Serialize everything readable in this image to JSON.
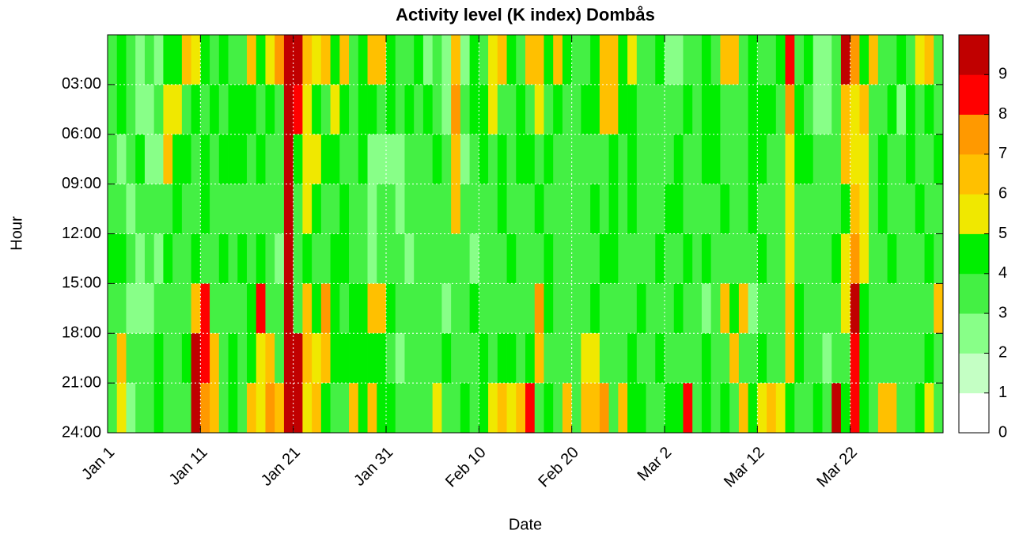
{
  "chart_data": {
    "type": "heatmap",
    "title": "Activity level (K index) Dombås",
    "xlabel": "Date",
    "ylabel": "Hour",
    "x": [
      0,
      1,
      2,
      3,
      4,
      5,
      6,
      7,
      8,
      9,
      10,
      11,
      12,
      13,
      14,
      15,
      16,
      17,
      18,
      19,
      20,
      21,
      22,
      23,
      24,
      25,
      26,
      27,
      28,
      29,
      30,
      31,
      32,
      33,
      34,
      35,
      36,
      37,
      38,
      39,
      40,
      41,
      42,
      43,
      44,
      45,
      46,
      47,
      48,
      49,
      50,
      51,
      52,
      53,
      54,
      55,
      56,
      57,
      58,
      59,
      60,
      61,
      62,
      63,
      64,
      65,
      66,
      67,
      68,
      69,
      70,
      71,
      72,
      73,
      74,
      75,
      76,
      77,
      78,
      79,
      80,
      81,
      82,
      83,
      84,
      85,
      86,
      87,
      88,
      89
    ],
    "ybins": [
      0,
      3,
      6,
      9,
      12,
      15,
      18,
      21,
      24
    ],
    "xlim": [
      0,
      90
    ],
    "xticks": [
      {
        "value": 0,
        "label": "Jan 1"
      },
      {
        "value": 10,
        "label": "Jan 11"
      },
      {
        "value": 20,
        "label": "Jan 21"
      },
      {
        "value": 30,
        "label": "Jan 31"
      },
      {
        "value": 40,
        "label": "Feb 10"
      },
      {
        "value": 50,
        "label": "Feb 20"
      },
      {
        "value": 60,
        "label": "Mar 2"
      },
      {
        "value": 70,
        "label": "Mar 12"
      },
      {
        "value": 80,
        "label": "Mar 22"
      }
    ],
    "ylim": [
      0,
      24
    ],
    "yticks": [
      {
        "value": 3,
        "label": "03:00"
      },
      {
        "value": 6,
        "label": "06:00"
      },
      {
        "value": 9,
        "label": "09:00"
      },
      {
        "value": 12,
        "label": "12:00"
      },
      {
        "value": 15,
        "label": "15:00"
      },
      {
        "value": 18,
        "label": "18:00"
      },
      {
        "value": 21,
        "label": "21:00"
      },
      {
        "value": 24,
        "label": "24:00"
      }
    ],
    "zlim": [
      0,
      10
    ],
    "zticks": [
      0,
      1,
      2,
      3,
      4,
      5,
      6,
      7,
      8,
      9
    ],
    "colors": [
      "#ffffff",
      "#c4ffc4",
      "#88ff88",
      "#44f044",
      "#00ee00",
      "#f0e800",
      "#ffc000",
      "#ff9900",
      "#ff0000",
      "#c00000"
    ],
    "grid": true,
    "values": [
      [
        3,
        4,
        3,
        2,
        3,
        2,
        4,
        4,
        6,
        5,
        4,
        3,
        4,
        3,
        3,
        6,
        4,
        5,
        7,
        9,
        9,
        6,
        5,
        6,
        4,
        6,
        3,
        4,
        6,
        6,
        4,
        3,
        3,
        4,
        2,
        3,
        2,
        6,
        2,
        4,
        3,
        5,
        6,
        4,
        3,
        6,
        6,
        4,
        6,
        4,
        3,
        3,
        4,
        6,
        6,
        4,
        5,
        3,
        3,
        4,
        2,
        2,
        3,
        3,
        4,
        3,
        6,
        6,
        3,
        4,
        3,
        3,
        4,
        8,
        3,
        4,
        2,
        2,
        3,
        9,
        7,
        4,
        6,
        3,
        3,
        4,
        3,
        5,
        6,
        3
      ],
      [
        3,
        4,
        3,
        2,
        2,
        3,
        5,
        5,
        3,
        4,
        3,
        4,
        3,
        4,
        4,
        4,
        3,
        4,
        3,
        9,
        8,
        5,
        4,
        3,
        5,
        4,
        3,
        4,
        4,
        3,
        4,
        3,
        4,
        3,
        4,
        3,
        2,
        7,
        3,
        4,
        4,
        5,
        3,
        3,
        4,
        3,
        5,
        3,
        4,
        3,
        3,
        4,
        4,
        6,
        6,
        4,
        4,
        3,
        3,
        3,
        3,
        3,
        4,
        3,
        4,
        4,
        3,
        3,
        3,
        4,
        4,
        4,
        3,
        7,
        4,
        3,
        2,
        2,
        3,
        6,
        5,
        6,
        3,
        3,
        4,
        2,
        4,
        3,
        4,
        3
      ],
      [
        3,
        2,
        3,
        4,
        2,
        2,
        6,
        4,
        4,
        3,
        4,
        3,
        4,
        4,
        4,
        3,
        4,
        3,
        3,
        9,
        4,
        5,
        5,
        4,
        4,
        3,
        3,
        4,
        2,
        2,
        2,
        2,
        3,
        3,
        3,
        4,
        3,
        6,
        2,
        3,
        4,
        3,
        4,
        3,
        4,
        4,
        3,
        4,
        3,
        3,
        3,
        3,
        3,
        3,
        4,
        3,
        4,
        3,
        3,
        3,
        3,
        4,
        3,
        3,
        4,
        4,
        3,
        3,
        3,
        4,
        4,
        3,
        3,
        5,
        4,
        4,
        3,
        3,
        3,
        6,
        5,
        5,
        3,
        4,
        3,
        3,
        4,
        3,
        3,
        4
      ],
      [
        3,
        3,
        2,
        3,
        3,
        3,
        3,
        4,
        3,
        3,
        4,
        3,
        3,
        3,
        3,
        3,
        3,
        3,
        3,
        9,
        3,
        5,
        4,
        3,
        3,
        4,
        3,
        3,
        2,
        3,
        3,
        2,
        3,
        3,
        3,
        3,
        3,
        6,
        3,
        3,
        3,
        3,
        4,
        3,
        3,
        3,
        4,
        3,
        3,
        3,
        3,
        3,
        4,
        3,
        4,
        3,
        4,
        3,
        3,
        3,
        4,
        4,
        3,
        3,
        3,
        3,
        4,
        3,
        3,
        4,
        3,
        3,
        3,
        5,
        3,
        3,
        3,
        3,
        3,
        4,
        6,
        5,
        3,
        4,
        3,
        3,
        3,
        4,
        3,
        3
      ],
      [
        4,
        4,
        3,
        2,
        3,
        2,
        4,
        3,
        3,
        4,
        3,
        3,
        4,
        3,
        4,
        3,
        4,
        3,
        2,
        9,
        3,
        4,
        3,
        3,
        4,
        4,
        3,
        3,
        2,
        3,
        3,
        3,
        2,
        3,
        3,
        3,
        3,
        3,
        3,
        2,
        3,
        3,
        3,
        4,
        3,
        3,
        3,
        4,
        3,
        3,
        3,
        3,
        3,
        4,
        4,
        3,
        3,
        3,
        3,
        4,
        3,
        3,
        4,
        3,
        4,
        3,
        3,
        3,
        3,
        3,
        4,
        3,
        3,
        5,
        3,
        3,
        3,
        3,
        4,
        5,
        7,
        5,
        3,
        3,
        4,
        3,
        3,
        3,
        4,
        3
      ],
      [
        3,
        3,
        2,
        2,
        2,
        3,
        3,
        3,
        3,
        6,
        8,
        3,
        3,
        3,
        3,
        4,
        8,
        3,
        3,
        9,
        3,
        6,
        4,
        7,
        4,
        3,
        4,
        4,
        6,
        6,
        4,
        3,
        3,
        3,
        3,
        3,
        2,
        3,
        3,
        4,
        3,
        3,
        3,
        3,
        3,
        3,
        7,
        4,
        3,
        3,
        3,
        3,
        4,
        3,
        3,
        3,
        3,
        4,
        3,
        3,
        3,
        4,
        3,
        3,
        2,
        3,
        6,
        4,
        6,
        2,
        3,
        3,
        3,
        6,
        4,
        3,
        3,
        3,
        3,
        5,
        9,
        4,
        3,
        3,
        3,
        3,
        3,
        3,
        3,
        6
      ],
      [
        3,
        6,
        3,
        3,
        3,
        4,
        3,
        3,
        4,
        9,
        8,
        6,
        3,
        4,
        3,
        4,
        5,
        6,
        3,
        9,
        9,
        6,
        5,
        6,
        4,
        4,
        4,
        4,
        4,
        4,
        3,
        2,
        3,
        3,
        3,
        3,
        4,
        3,
        3,
        3,
        4,
        3,
        4,
        4,
        3,
        4,
        6,
        3,
        3,
        3,
        3,
        5,
        5,
        3,
        3,
        3,
        4,
        3,
        3,
        4,
        3,
        3,
        3,
        3,
        4,
        3,
        3,
        6,
        3,
        3,
        4,
        3,
        3,
        6,
        4,
        3,
        3,
        2,
        3,
        3,
        8,
        4,
        3,
        3,
        3,
        3,
        3,
        3,
        4,
        3
      ],
      [
        3,
        5,
        2,
        3,
        3,
        4,
        3,
        3,
        3,
        9,
        7,
        6,
        3,
        4,
        3,
        6,
        5,
        7,
        6,
        9,
        9,
        5,
        6,
        4,
        3,
        3,
        6,
        4,
        6,
        4,
        4,
        3,
        3,
        3,
        3,
        5,
        3,
        3,
        4,
        3,
        4,
        5,
        6,
        5,
        6,
        8,
        3,
        4,
        3,
        6,
        3,
        6,
        6,
        7,
        3,
        6,
        4,
        4,
        3,
        3,
        4,
        4,
        8,
        3,
        4,
        3,
        4,
        3,
        6,
        4,
        5,
        6,
        5,
        4,
        3,
        3,
        4,
        3,
        9,
        4,
        8,
        4,
        3,
        6,
        6,
        3,
        3,
        4,
        5,
        3
      ]
    ]
  }
}
